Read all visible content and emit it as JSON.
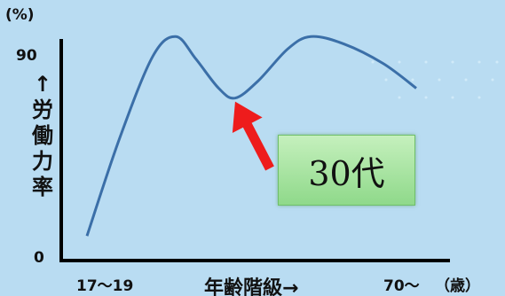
{
  "chart_data": {
    "type": "line",
    "ylabel": "↑労働力率",
    "yunit": "(%)",
    "xlabel": "年齢階級→",
    "xunit": "（歳）",
    "x_first_label": "17〜19",
    "x_last_label": "70〜",
    "ytick_labels": [
      "90",
      "0"
    ],
    "ylim": [
      0,
      90
    ],
    "series": [
      {
        "values": [
          [
            0.0,
            10
          ],
          [
            0.1,
            50
          ],
          [
            0.2,
            83
          ],
          [
            0.27,
            91
          ],
          [
            0.33,
            82
          ],
          [
            0.4,
            70
          ],
          [
            0.45,
            66
          ],
          [
            0.52,
            73
          ],
          [
            0.61,
            86
          ],
          [
            0.68,
            91
          ],
          [
            0.78,
            88
          ],
          [
            0.9,
            80
          ],
          [
            1.0,
            70
          ]
        ]
      }
    ],
    "annotation": "30代",
    "colors": {
      "line": "#3b6fa8",
      "arrow": "#ee1c1c",
      "axis": "#000000"
    }
  }
}
